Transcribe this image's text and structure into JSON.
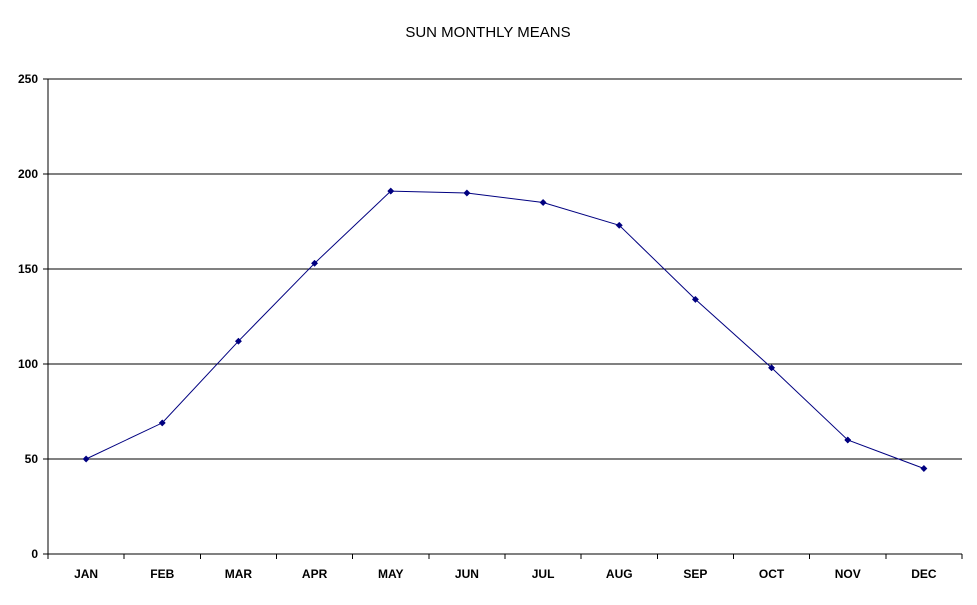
{
  "chart_data": {
    "type": "line",
    "title": "SUN MONTHLY MEANS",
    "xlabel": "",
    "ylabel": "",
    "categories": [
      "JAN",
      "FEB",
      "MAR",
      "APR",
      "MAY",
      "JUN",
      "JUL",
      "AUG",
      "SEP",
      "OCT",
      "NOV",
      "DEC"
    ],
    "series": [
      {
        "values": [
          50,
          69,
          112,
          153,
          191,
          190,
          185,
          173,
          134,
          98,
          60,
          45
        ]
      }
    ],
    "ylim": [
      0,
      250
    ],
    "yticks": [
      0,
      50,
      100,
      150,
      200,
      250
    ],
    "grid": true,
    "legend": "none",
    "colors": {
      "line": "#000080",
      "marker": "#000080",
      "grid": "#000000",
      "axis": "#000000",
      "background": "#ffffff"
    }
  }
}
